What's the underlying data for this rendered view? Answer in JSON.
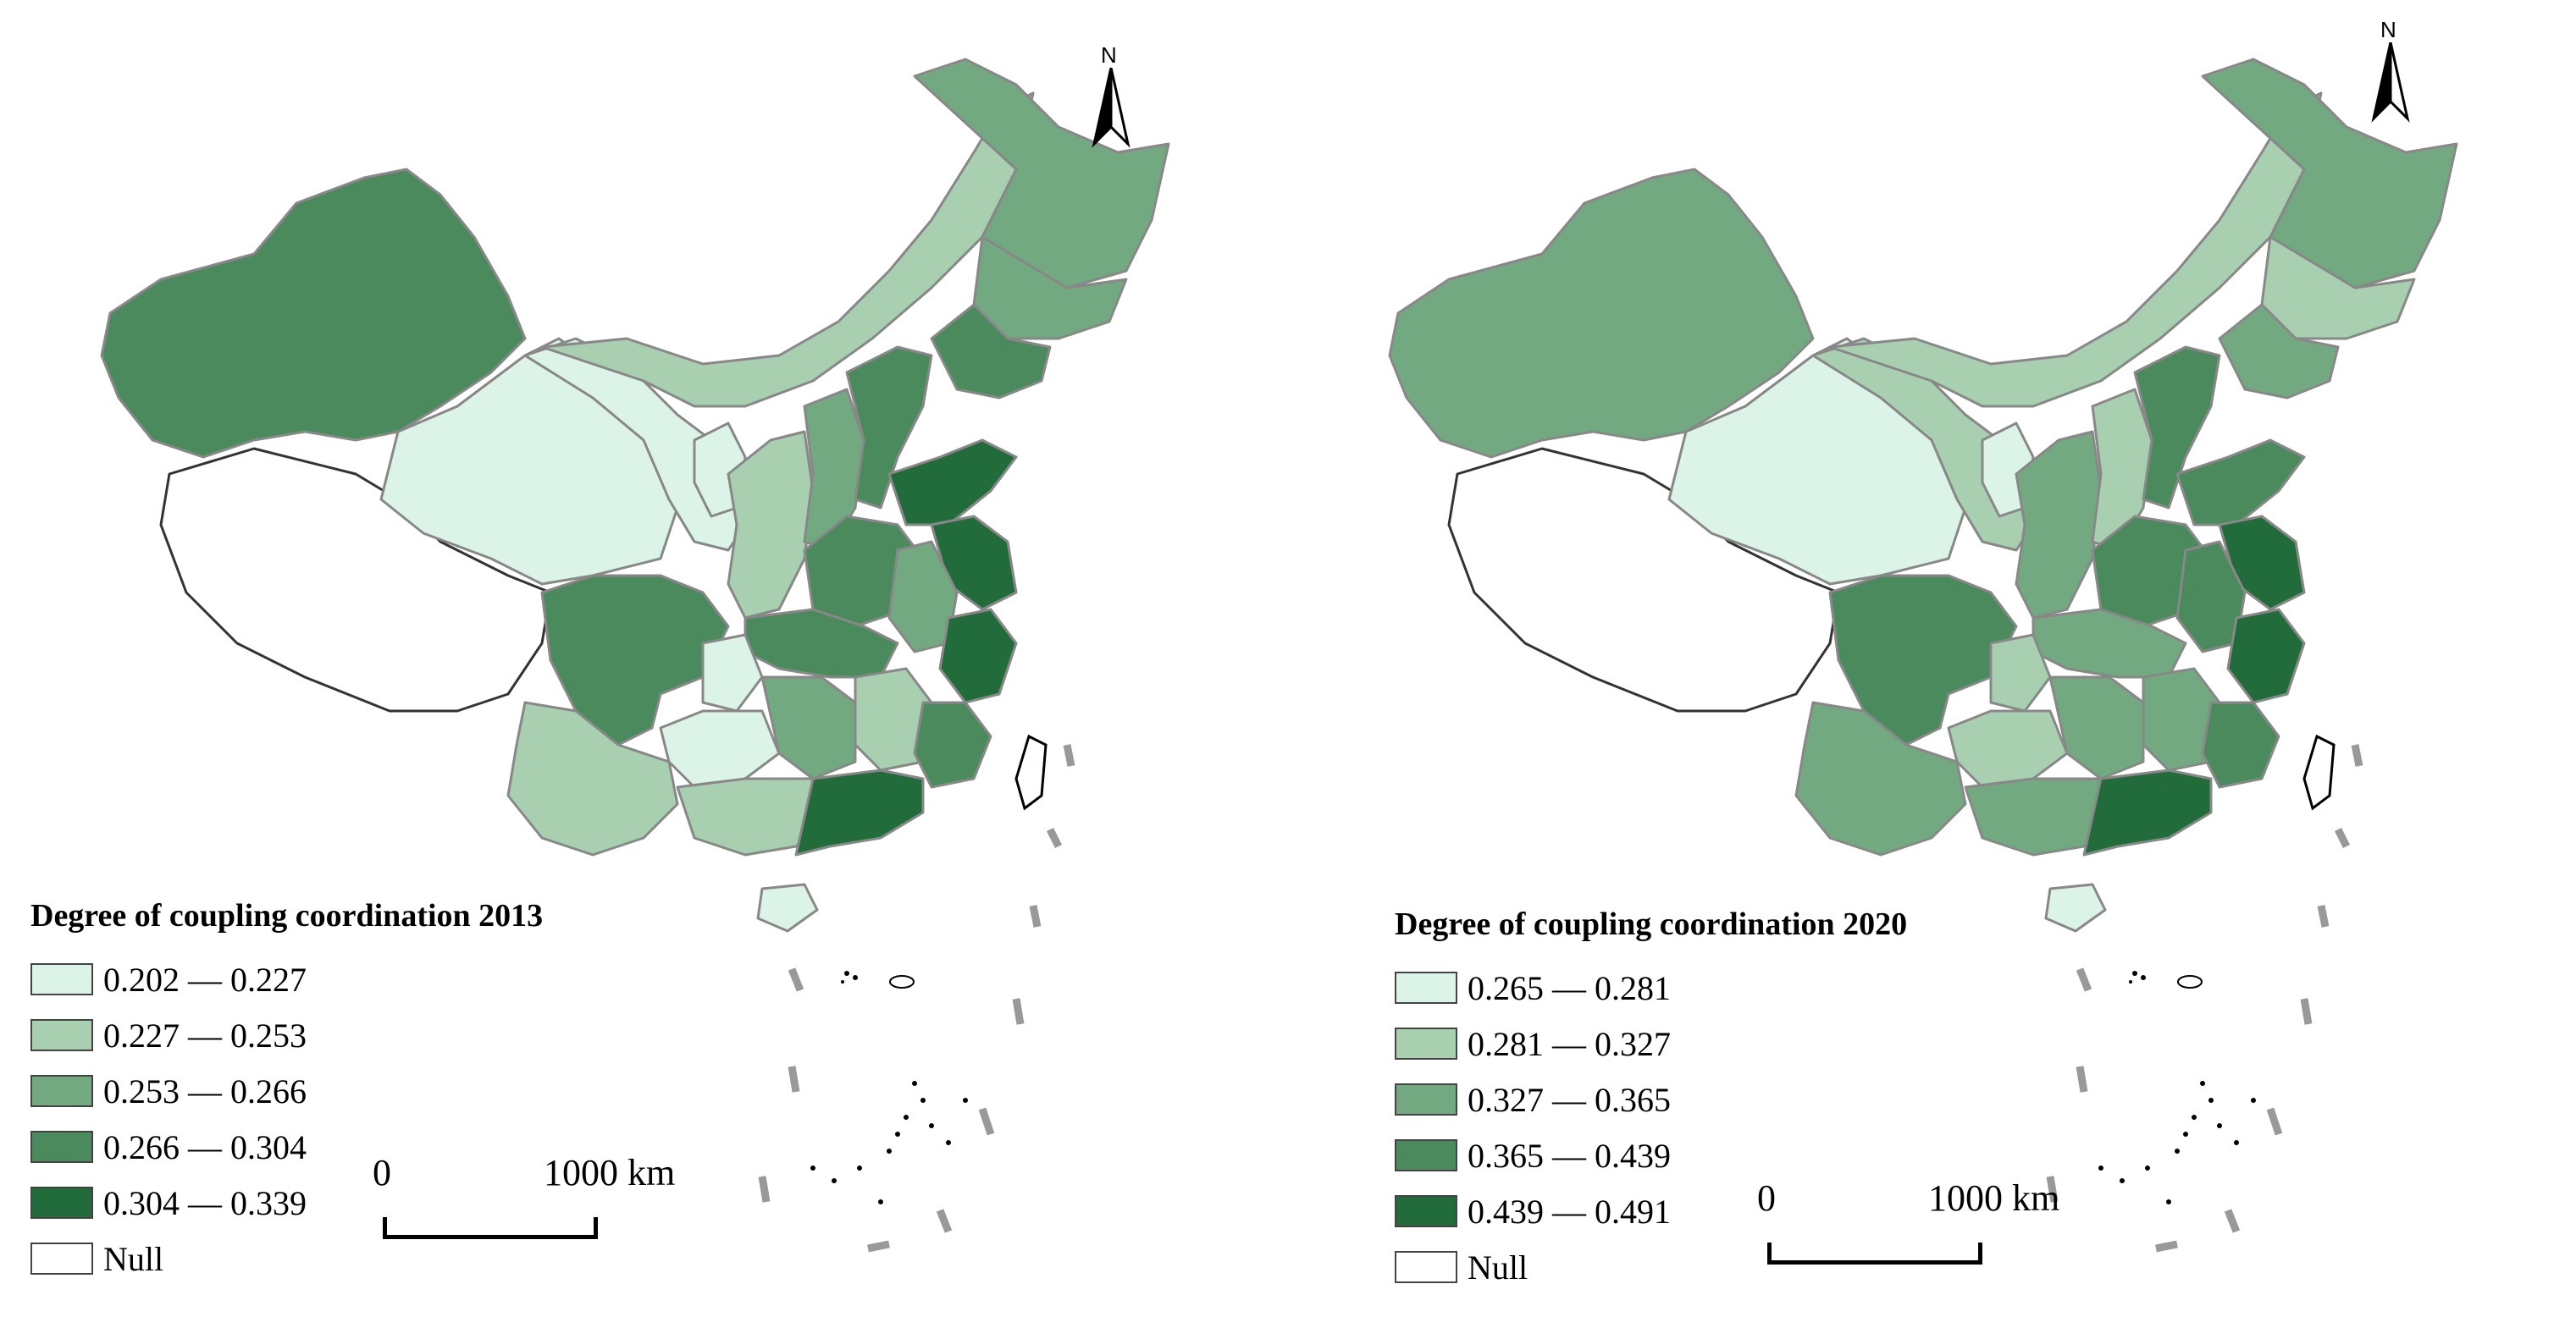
{
  "maps": [
    {
      "year_title": "Degree of coupling coordination 2013",
      "classes": [
        {
          "label": "0.202 — 0.227",
          "color": "#dcf3e7"
        },
        {
          "label": "0.227 — 0.253",
          "color": "#a7cfb0"
        },
        {
          "label": "0.253 — 0.266",
          "color": "#72a981"
        },
        {
          "label": "0.266 — 0.304",
          "color": "#4b8a5d"
        },
        {
          "label": "0.304 — 0.339",
          "color": "#226b3a"
        }
      ],
      "null_label": "Null",
      "null_color": "#ffffff",
      "scale_zero": "0",
      "scale_distance": "1000 km",
      "north_label": "N"
    },
    {
      "year_title": "Degree of coupling coordination 2020",
      "classes": [
        {
          "label": "0.265 — 0.281",
          "color": "#dcf3e7"
        },
        {
          "label": "0.281 — 0.327",
          "color": "#a7cfb0"
        },
        {
          "label": "0.327 — 0.365",
          "color": "#72a981"
        },
        {
          "label": "0.365 — 0.439",
          "color": "#4b8a5d"
        },
        {
          "label": "0.439 — 0.491",
          "color": "#226b3a"
        }
      ],
      "null_label": "Null",
      "null_color": "#ffffff",
      "scale_zero": "0",
      "scale_distance": "1000 km",
      "north_label": "N"
    }
  ]
}
